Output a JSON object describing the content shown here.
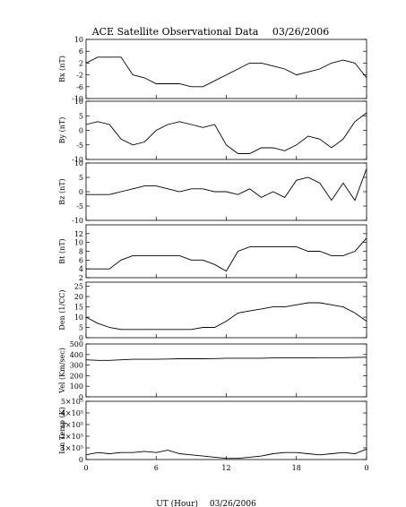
{
  "title": "ACE Satellite Observational Data",
  "title_date": "03/26/2006",
  "x_axis": {
    "label": "UT (Hour)",
    "label_date": "03/26/2006",
    "ticks": [
      "0",
      "6",
      "12",
      "18",
      "0"
    ]
  },
  "chart_data": [
    {
      "type": "line",
      "ylabel": "Bx (nT)",
      "ylim": [
        -10,
        10
      ],
      "yticks": [
        "10",
        "6",
        "2",
        "-2",
        "-6",
        "-10"
      ],
      "series": [
        {
          "x": [
            0,
            1,
            2,
            3,
            4,
            5,
            6,
            7,
            8,
            9,
            10,
            11,
            12,
            13,
            14,
            15,
            16,
            17,
            18,
            19,
            20,
            21,
            22,
            23,
            24
          ],
          "values": [
            2,
            4,
            4,
            4,
            -2,
            -3,
            -5,
            -5,
            -5,
            -6,
            -6,
            -4,
            -2,
            0,
            2,
            2,
            1,
            0,
            -2,
            -1,
            0,
            2,
            3,
            2,
            -3
          ]
        }
      ]
    },
    {
      "type": "line",
      "ylabel": "By (nT)",
      "ylim": [
        -10,
        10
      ],
      "yticks": [
        "10",
        "5",
        "0",
        "-5",
        "-10"
      ],
      "series": [
        {
          "x": [
            0,
            1,
            2,
            3,
            4,
            5,
            6,
            7,
            8,
            9,
            10,
            11,
            12,
            13,
            14,
            15,
            16,
            17,
            18,
            19,
            20,
            21,
            22,
            23,
            24
          ],
          "values": [
            2,
            3,
            2,
            -3,
            -5,
            -4,
            0,
            2,
            3,
            2,
            1,
            2,
            -5,
            -8,
            -8,
            -6,
            -6,
            -7,
            -5,
            -2,
            -3,
            -6,
            -3,
            3,
            6
          ]
        }
      ]
    },
    {
      "type": "line",
      "ylabel": "Bz (nT)",
      "ylim": [
        -10,
        10
      ],
      "yticks": [
        "10",
        "5",
        "0",
        "-5",
        "-10"
      ],
      "series": [
        {
          "x": [
            0,
            1,
            2,
            3,
            4,
            5,
            6,
            7,
            8,
            9,
            10,
            11,
            12,
            13,
            14,
            15,
            16,
            17,
            18,
            19,
            20,
            21,
            22,
            23,
            24
          ],
          "values": [
            -1,
            -1,
            -1,
            0,
            1,
            2,
            2,
            1,
            0,
            1,
            1,
            0,
            0,
            -1,
            1,
            -2,
            0,
            -2,
            4,
            5,
            3,
            -3,
            3,
            -3,
            8
          ]
        }
      ]
    },
    {
      "type": "line",
      "ylabel": "Bt (nT)",
      "ylim": [
        2,
        14
      ],
      "yticks": [
        "12",
        "10",
        "8",
        "6",
        "4",
        "2"
      ],
      "series": [
        {
          "x": [
            0,
            1,
            2,
            3,
            4,
            5,
            6,
            7,
            8,
            9,
            10,
            11,
            12,
            13,
            14,
            15,
            16,
            17,
            18,
            19,
            20,
            21,
            22,
            23,
            24
          ],
          "values": [
            4,
            4,
            4,
            6,
            7,
            7,
            7,
            7,
            7,
            6,
            6,
            5,
            3.5,
            8,
            9,
            9,
            9,
            9,
            9,
            8,
            8,
            7,
            7,
            8,
            11
          ]
        }
      ]
    },
    {
      "type": "line",
      "ylabel": "Den (1/CC)",
      "ylim": [
        0,
        27
      ],
      "yticks": [
        "25",
        "20",
        "15",
        "10",
        "5",
        "0"
      ],
      "series": [
        {
          "x": [
            0,
            1,
            2,
            3,
            4,
            5,
            6,
            7,
            8,
            9,
            10,
            11,
            12,
            13,
            14,
            15,
            16,
            17,
            18,
            19,
            20,
            21,
            22,
            23,
            24
          ],
          "values": [
            10,
            7,
            5,
            4,
            4,
            4,
            4,
            4,
            4,
            4,
            5,
            5,
            8,
            12,
            13,
            14,
            15,
            15,
            16,
            17,
            17,
            16,
            15,
            12,
            8
          ]
        }
      ]
    },
    {
      "type": "line",
      "ylabel": "Vel (Km/sec)",
      "ylim": [
        0,
        500
      ],
      "yticks": [
        "500",
        "400",
        "300",
        "200",
        "100",
        "0"
      ],
      "series": [
        {
          "x": [
            0,
            1,
            2,
            3,
            4,
            5,
            6,
            7,
            8,
            9,
            10,
            11,
            12,
            13,
            14,
            15,
            16,
            17,
            18,
            19,
            20,
            21,
            22,
            23,
            24
          ],
          "values": [
            350,
            345,
            345,
            350,
            355,
            355,
            355,
            358,
            360,
            360,
            360,
            362,
            365,
            365,
            365,
            365,
            368,
            368,
            368,
            368,
            370,
            370,
            370,
            372,
            375
          ]
        }
      ]
    },
    {
      "type": "line",
      "ylabel": "Ion Temp (K)",
      "ylim": [
        0,
        500000
      ],
      "yticks": [
        "5×10⁵",
        "4×10⁵",
        "3×10⁵",
        "2×10⁵",
        "1×10⁵",
        "0"
      ],
      "series": [
        {
          "x": [
            0,
            1,
            2,
            3,
            4,
            5,
            6,
            7,
            8,
            9,
            10,
            11,
            12,
            13,
            14,
            15,
            16,
            17,
            18,
            19,
            20,
            21,
            22,
            23,
            24
          ],
          "values": [
            40000,
            60000,
            50000,
            60000,
            60000,
            70000,
            60000,
            80000,
            50000,
            40000,
            30000,
            20000,
            10000,
            10000,
            20000,
            30000,
            50000,
            60000,
            60000,
            50000,
            40000,
            50000,
            60000,
            50000,
            90000
          ]
        }
      ]
    }
  ]
}
